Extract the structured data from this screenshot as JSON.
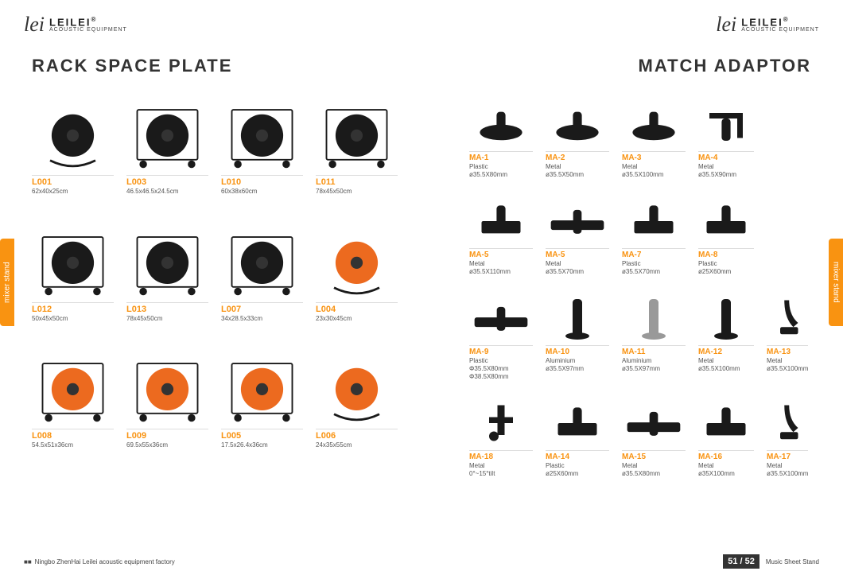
{
  "brand": {
    "script": "lei",
    "name": "LEILEI",
    "sub": "ACOUSTIC EQUIPMENT",
    "reg": "®"
  },
  "left": {
    "title": "RACK SPACE PLATE",
    "tab": "mixer stand",
    "items": [
      {
        "model": "L001",
        "spec": "62x40x25cm"
      },
      {
        "model": "L003",
        "spec": "46.5x46.5x24.5cm"
      },
      {
        "model": "L010",
        "spec": "60x38x60cm"
      },
      {
        "model": "L011",
        "spec": "78x45x50cm"
      },
      {
        "model": "L012",
        "spec": "50x45x50cm"
      },
      {
        "model": "L013",
        "spec": "78x45x50cm"
      },
      {
        "model": "L007",
        "spec": "34x28.5x33cm"
      },
      {
        "model": "L004",
        "spec": "23x30x45cm"
      },
      {
        "model": "L008",
        "spec": "54.5x51x36cm"
      },
      {
        "model": "L009",
        "spec": "69.5x55x36cm"
      },
      {
        "model": "L005",
        "spec": "17.5x26.4x36cm"
      },
      {
        "model": "L006",
        "spec": "24x35x55cm"
      }
    ]
  },
  "right": {
    "title": "MATCH ADAPTOR",
    "tab": "mixer stand",
    "rows": [
      [
        {
          "model": "MA-1",
          "mat": "Plastic",
          "dim": "ø35.5X80mm"
        },
        {
          "model": "MA-2",
          "mat": "Metal",
          "dim": "ø35.5X50mm"
        },
        {
          "model": "MA-3",
          "mat": "Metal",
          "dim": "ø35.5X100mm"
        },
        {
          "model": "MA-4",
          "mat": "Metal",
          "dim": "ø35.5X90mm"
        }
      ],
      [
        {
          "model": "MA-5",
          "mat": "Metal",
          "dim": "ø35.5X110mm"
        },
        {
          "model": "MA-5",
          "mat": "Metal",
          "dim": "ø35.5X70mm"
        },
        {
          "model": "MA-7",
          "mat": "Plastic",
          "dim": "ø35.5X70mm"
        },
        {
          "model": "MA-8",
          "mat": "Plastic",
          "dim": "ø25X60mm"
        }
      ],
      [
        {
          "model": "MA-9",
          "mat": "Plastic",
          "dim": "Φ35.5X80mm",
          "dim2": "Φ38.5X80mm"
        },
        {
          "model": "MA-10",
          "mat": "Aluminium",
          "dim": "ø35.5X97mm"
        },
        {
          "model": "MA-11",
          "mat": "Aluminium",
          "dim": "ø35.5X97mm"
        },
        {
          "model": "MA-12",
          "mat": "Metal",
          "dim": "ø35.5X100mm"
        },
        {
          "model": "MA-13",
          "mat": "Metal",
          "dim": "ø35.5X100mm"
        }
      ],
      [
        {
          "model": "MA-18",
          "mat": "Metal",
          "dim": "0°~15°tilt"
        },
        {
          "model": "MA-14",
          "mat": "Plastic",
          "dim": "ø25X60mm"
        },
        {
          "model": "MA-15",
          "mat": "Metal",
          "dim": "ø35.5X80mm"
        },
        {
          "model": "MA-16",
          "mat": "Metal",
          "dim": "ø35X100mm"
        },
        {
          "model": "MA-17",
          "mat": "Metal",
          "dim": "ø35.5X100mm"
        }
      ]
    ]
  },
  "footer": {
    "factory": "Ningbo ZhenHai Leilei acoustic equipment factory",
    "pages": "51 / 52",
    "category": "Music Sheet Stand"
  }
}
